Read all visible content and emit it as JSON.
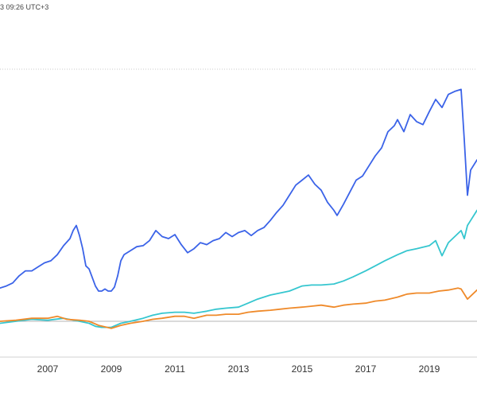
{
  "header": {
    "timestamp": "3 09:26 UTC+3"
  },
  "colors": {
    "series_blue": "#3b63e8",
    "series_cyan": "#35c6cf",
    "series_orange": "#ef8a2a",
    "grid": "#c8c8c8",
    "axis_text": "#333333"
  },
  "chart_data": {
    "type": "line",
    "xlim": [
      2005.5,
      2020.5
    ],
    "ylim": [
      -0.5,
      3.0
    ],
    "grid": "dotted horizontal",
    "legend": "none",
    "x_ticks": [
      {
        "value": 2007,
        "label": "2007"
      },
      {
        "value": 2009,
        "label": "2009"
      },
      {
        "value": 2011,
        "label": "2011"
      },
      {
        "value": 2013,
        "label": "2013"
      },
      {
        "value": 2015,
        "label": "2015"
      },
      {
        "value": 2017,
        "label": "2017"
      },
      {
        "value": 2019,
        "label": "2019"
      }
    ],
    "baseline": 0,
    "series": [
      {
        "key": "blue",
        "x": [
          2005.5,
          2005.7,
          2005.9,
          2006.1,
          2006.3,
          2006.5,
          2006.7,
          2006.9,
          2007.1,
          2007.3,
          2007.5,
          2007.7,
          2007.8,
          2007.9,
          2008.0,
          2008.1,
          2008.2,
          2008.3,
          2008.5,
          2008.6,
          2008.7,
          2008.8,
          2008.9,
          2009.0,
          2009.1,
          2009.2,
          2009.3,
          2009.4,
          2009.6,
          2009.8,
          2010.0,
          2010.2,
          2010.4,
          2010.6,
          2010.8,
          2011.0,
          2011.2,
          2011.4,
          2011.6,
          2011.8,
          2012.0,
          2012.2,
          2012.4,
          2012.6,
          2012.8,
          2013.0,
          2013.2,
          2013.4,
          2013.6,
          2013.8,
          2014.0,
          2014.2,
          2014.4,
          2014.6,
          2014.8,
          2015.0,
          2015.2,
          2015.4,
          2015.6,
          2015.8,
          2016.0,
          2016.1,
          2016.3,
          2016.5,
          2016.7,
          2016.9,
          2017.1,
          2017.3,
          2017.5,
          2017.7,
          2017.9,
          2018.0,
          2018.2,
          2018.4,
          2018.6,
          2018.8,
          2019.0,
          2019.2,
          2019.4,
          2019.6,
          2019.8,
          2020.0,
          2020.1,
          2020.2,
          2020.3,
          2020.5
        ],
        "values": [
          0.33,
          0.35,
          0.38,
          0.45,
          0.5,
          0.5,
          0.54,
          0.58,
          0.6,
          0.66,
          0.75,
          0.82,
          0.9,
          0.95,
          0.85,
          0.72,
          0.55,
          0.52,
          0.35,
          0.3,
          0.3,
          0.32,
          0.3,
          0.3,
          0.34,
          0.45,
          0.6,
          0.66,
          0.7,
          0.74,
          0.75,
          0.8,
          0.9,
          0.84,
          0.82,
          0.86,
          0.76,
          0.68,
          0.72,
          0.78,
          0.76,
          0.8,
          0.82,
          0.88,
          0.84,
          0.88,
          0.9,
          0.85,
          0.9,
          0.93,
          1.0,
          1.08,
          1.15,
          1.25,
          1.35,
          1.4,
          1.45,
          1.36,
          1.3,
          1.18,
          1.1,
          1.05,
          1.16,
          1.28,
          1.4,
          1.44,
          1.54,
          1.64,
          1.72,
          1.88,
          1.94,
          2.0,
          1.88,
          2.05,
          1.98,
          1.95,
          2.08,
          2.2,
          2.12,
          2.25,
          2.28,
          2.3,
          1.8,
          1.25,
          1.5,
          1.6
        ]
      },
      {
        "key": "cyan",
        "x": [
          2005.5,
          2006.0,
          2006.5,
          2007.0,
          2007.5,
          2008.0,
          2008.3,
          2008.5,
          2008.7,
          2009.0,
          2009.3,
          2009.6,
          2010.0,
          2010.3,
          2010.6,
          2011.0,
          2011.3,
          2011.6,
          2012.0,
          2012.3,
          2012.6,
          2013.0,
          2013.3,
          2013.6,
          2014.0,
          2014.3,
          2014.6,
          2015.0,
          2015.3,
          2015.6,
          2016.0,
          2016.3,
          2016.6,
          2017.0,
          2017.3,
          2017.6,
          2018.0,
          2018.3,
          2018.6,
          2019.0,
          2019.2,
          2019.4,
          2019.6,
          2019.8,
          2020.0,
          2020.1,
          2020.2,
          2020.3,
          2020.5
        ],
        "values": [
          -0.02,
          0.0,
          0.02,
          0.01,
          0.03,
          0.0,
          -0.02,
          -0.05,
          -0.06,
          -0.06,
          -0.02,
          0.0,
          0.03,
          0.06,
          0.08,
          0.09,
          0.09,
          0.08,
          0.1,
          0.12,
          0.13,
          0.14,
          0.18,
          0.22,
          0.26,
          0.28,
          0.3,
          0.35,
          0.36,
          0.36,
          0.37,
          0.4,
          0.44,
          0.5,
          0.55,
          0.6,
          0.66,
          0.7,
          0.72,
          0.75,
          0.8,
          0.65,
          0.78,
          0.84,
          0.9,
          0.82,
          0.95,
          1.0,
          1.1
        ]
      },
      {
        "key": "orange",
        "x": [
          2005.5,
          2006.0,
          2006.5,
          2007.0,
          2007.3,
          2007.6,
          2008.0,
          2008.3,
          2008.6,
          2009.0,
          2009.3,
          2009.6,
          2010.0,
          2010.3,
          2010.6,
          2011.0,
          2011.3,
          2011.6,
          2012.0,
          2012.3,
          2012.6,
          2013.0,
          2013.3,
          2013.6,
          2014.0,
          2014.3,
          2014.6,
          2015.0,
          2015.3,
          2015.6,
          2016.0,
          2016.3,
          2016.6,
          2017.0,
          2017.3,
          2017.6,
          2018.0,
          2018.3,
          2018.6,
          2019.0,
          2019.3,
          2019.6,
          2019.9,
          2020.0,
          2020.2,
          2020.5
        ],
        "values": [
          0.0,
          0.01,
          0.03,
          0.03,
          0.05,
          0.02,
          0.01,
          0.0,
          -0.04,
          -0.07,
          -0.04,
          -0.02,
          0.0,
          0.02,
          0.03,
          0.05,
          0.05,
          0.03,
          0.06,
          0.06,
          0.07,
          0.07,
          0.09,
          0.1,
          0.11,
          0.12,
          0.13,
          0.14,
          0.15,
          0.16,
          0.14,
          0.16,
          0.17,
          0.18,
          0.2,
          0.21,
          0.24,
          0.27,
          0.28,
          0.28,
          0.3,
          0.31,
          0.33,
          0.32,
          0.22,
          0.31
        ]
      }
    ]
  }
}
